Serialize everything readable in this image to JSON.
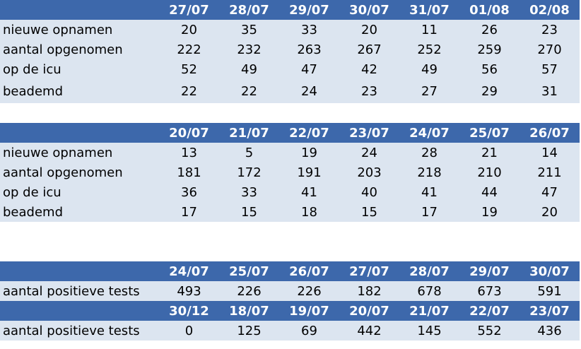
{
  "tables": [
    {
      "header": [
        "27/07",
        "28/07",
        "29/07",
        "30/07",
        "31/07",
        "01/08",
        "02/08"
      ],
      "rows": [
        {
          "label": "nieuwe opnamen",
          "values": [
            20,
            35,
            33,
            20,
            11,
            26,
            23
          ]
        },
        {
          "label": "aantal opgenomen",
          "values": [
            222,
            232,
            263,
            267,
            252,
            259,
            270
          ]
        },
        {
          "label": "op de icu",
          "values": [
            52,
            49,
            47,
            42,
            49,
            56,
            57
          ]
        },
        {
          "label": "beademd",
          "values": [
            22,
            22,
            24,
            23,
            27,
            29,
            31
          ]
        }
      ]
    },
    {
      "header": [
        "20/07",
        "21/07",
        "22/07",
        "23/07",
        "24/07",
        "25/07",
        "26/07"
      ],
      "rows": [
        {
          "label": "nieuwe opnamen",
          "values": [
            13,
            5,
            19,
            24,
            28,
            21,
            14
          ]
        },
        {
          "label": "aantal opgenomen",
          "values": [
            181,
            172,
            191,
            203,
            218,
            210,
            211
          ]
        },
        {
          "label": "op de icu",
          "values": [
            36,
            33,
            41,
            40,
            41,
            44,
            47
          ]
        },
        {
          "label": "beademd",
          "values": [
            17,
            15,
            18,
            15,
            17,
            19,
            20
          ]
        }
      ]
    },
    {
      "header": [
        "24/07",
        "25/07",
        "26/07",
        "27/07",
        "28/07",
        "29/07",
        "30/07"
      ],
      "rows": [
        {
          "label": "aantal positieve tests",
          "values": [
            493,
            226,
            226,
            182,
            678,
            673,
            591
          ]
        }
      ]
    },
    {
      "header": [
        "30/12",
        "18/07",
        "19/07",
        "20/07",
        "21/07",
        "22/07",
        "23/07"
      ],
      "rows": [
        {
          "label": "aantal positieve tests",
          "values": [
            0,
            125,
            69,
            442,
            145,
            552,
            436
          ]
        }
      ]
    }
  ]
}
